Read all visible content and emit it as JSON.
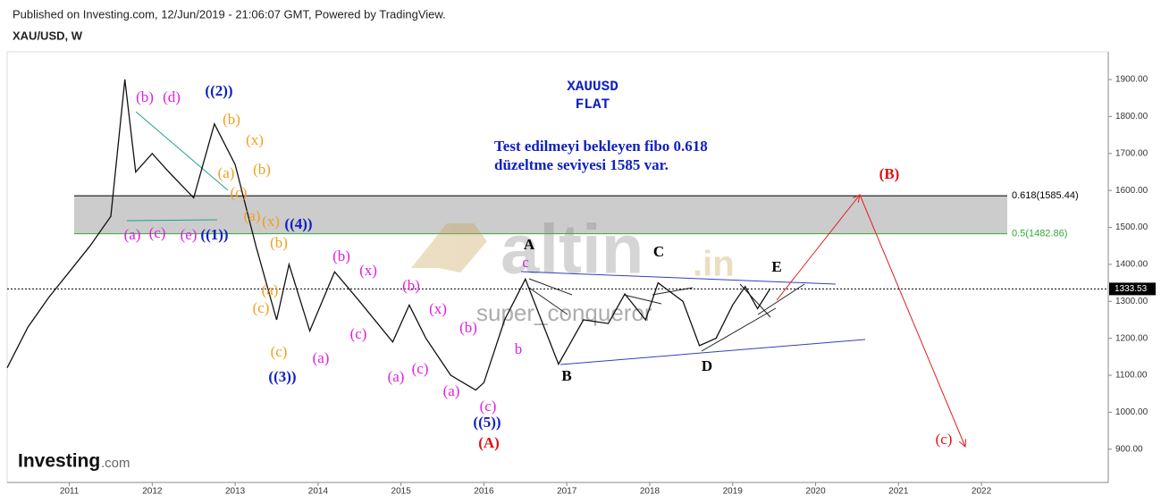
{
  "header": {
    "published": "Published on Investing.com, 12/Jun/2019 - 21:06:07 GMT, Powered by TradingView.",
    "symbol": "XAU/USD, W"
  },
  "logo": {
    "brand": "Investing",
    "suffix": ".com"
  },
  "watermark": {
    "main": "altin",
    "suffix": ".in",
    "author": "super_conqueror"
  },
  "chart_data": {
    "type": "line",
    "color": "#111111",
    "x": [
      2010.25,
      2010.5,
      2010.75,
      2011.0,
      2011.25,
      2011.5,
      2011.67,
      2011.8,
      2012.0,
      2012.2,
      2012.5,
      2012.75,
      2013.0,
      2013.25,
      2013.5,
      2013.65,
      2013.9,
      2014.2,
      2014.5,
      2014.9,
      2015.1,
      2015.3,
      2015.6,
      2015.9,
      2016.0,
      2016.25,
      2016.5,
      2016.9,
      2017.2,
      2017.5,
      2017.7,
      2017.95,
      2018.1,
      2018.4,
      2018.6,
      2018.8,
      2019.0,
      2019.15,
      2019.3,
      2019.45
    ],
    "values": [
      1120,
      1230,
      1310,
      1380,
      1450,
      1530,
      1900,
      1650,
      1700,
      1650,
      1580,
      1780,
      1670,
      1450,
      1250,
      1400,
      1220,
      1380,
      1300,
      1190,
      1290,
      1200,
      1100,
      1060,
      1080,
      1250,
      1360,
      1130,
      1250,
      1240,
      1320,
      1250,
      1350,
      1300,
      1180,
      1200,
      1290,
      1340,
      1280,
      1333.53
    ],
    "xlim": [
      2010.25,
      2023.53
    ],
    "xticks": [
      2011,
      2012,
      2013,
      2014,
      2015,
      2016,
      2017,
      2018,
      2019,
      2020,
      2021,
      2022
    ],
    "ylim": [
      810,
      1975
    ],
    "yticks": [
      {
        "value": 900,
        "label": "900.00"
      },
      {
        "value": 1000,
        "label": "1000.00"
      },
      {
        "value": 1100,
        "label": "1100.00"
      },
      {
        "value": 1200,
        "label": "1200.00"
      },
      {
        "value": 1300,
        "label": "1300.00"
      },
      {
        "value": 1400,
        "label": "1400.00"
      },
      {
        "value": 1500,
        "label": "1500.00"
      },
      {
        "value": 1600,
        "label": "1600.00"
      },
      {
        "value": 1700,
        "label": "1700.00"
      },
      {
        "value": 1800,
        "label": "1800.00"
      },
      {
        "value": 1900,
        "label": "1900.00"
      }
    ],
    "last_price": 1333.53,
    "levels": [
      {
        "value": 1585.44,
        "label": "0.618(1585.44)",
        "color": "#000000"
      },
      {
        "value": 1482.86,
        "label": "0.5(1482.86)",
        "color": "#33aa33"
      }
    ],
    "annotations": [
      {
        "text": "(b)",
        "color": "#e020e0"
      },
      {
        "text": "(d)",
        "color": "#e020e0"
      },
      {
        "text": "((2))",
        "color": "#1020c0"
      },
      {
        "text": "(b)",
        "color": "#f0a020"
      },
      {
        "text": "(x)",
        "color": "#f0a020"
      },
      {
        "text": "(a)",
        "color": "#f0a020"
      },
      {
        "text": "(b)",
        "color": "#f0a020"
      },
      {
        "text": "(c)",
        "color": "#f0a020"
      },
      {
        "text": "(a)",
        "color": "#f0a020"
      },
      {
        "text": "(x)",
        "color": "#f0a020"
      },
      {
        "text": "((4))",
        "color": "#1020c0"
      },
      {
        "text": "(a)",
        "color": "#e020e0"
      },
      {
        "text": "(c)",
        "color": "#e020e0"
      },
      {
        "text": "(e)",
        "color": "#e020e0"
      },
      {
        "text": "((1))",
        "color": "#1020c0"
      },
      {
        "text": "(b)",
        "color": "#f0a020"
      },
      {
        "text": "(b)",
        "color": "#e020e0"
      },
      {
        "text": "(x)",
        "color": "#e020e0"
      },
      {
        "text": "(a)",
        "color": "#f0a020"
      },
      {
        "text": "(c)",
        "color": "#f0a020"
      },
      {
        "text": "(b)",
        "color": "#e020e0"
      },
      {
        "text": "(x)",
        "color": "#e020e0"
      },
      {
        "text": "(b)",
        "color": "#e020e0"
      },
      {
        "text": "(c)",
        "color": "#e020e0"
      },
      {
        "text": "(c)",
        "color": "#f0a020"
      },
      {
        "text": "(a)",
        "color": "#e020e0"
      },
      {
        "text": "((3))",
        "color": "#1020c0"
      },
      {
        "text": "(c)",
        "color": "#e020e0"
      },
      {
        "text": "(a)",
        "color": "#e020e0"
      },
      {
        "text": "(a)",
        "color": "#e020e0"
      },
      {
        "text": "(c)",
        "color": "#e020e0"
      },
      {
        "text": "((5))",
        "color": "#1020c0"
      },
      {
        "text": "(A)",
        "color": "#e01010"
      },
      {
        "text": "A",
        "color": "#000000"
      },
      {
        "text": "c",
        "color": "#e020e0"
      },
      {
        "text": "b",
        "color": "#e020e0"
      },
      {
        "text": "B",
        "color": "#000000"
      },
      {
        "text": "C",
        "color": "#000000"
      },
      {
        "text": "D",
        "color": "#000000"
      },
      {
        "text": "E",
        "color": "#000000"
      },
      {
        "text": "(B)",
        "color": "#e01010"
      },
      {
        "text": "(c)",
        "color": "#e01010"
      }
    ],
    "notes": [
      {
        "text": "XAUUSD",
        "color": "#1020c0"
      },
      {
        "text": "FLAT",
        "color": "#1020c0"
      },
      {
        "text": "Test edilmeyi bekleyen fibo 0.618",
        "color": "#1020c0"
      },
      {
        "text": "düzeltme seviyesi 1585 var.",
        "color": "#1020c0"
      }
    ]
  }
}
